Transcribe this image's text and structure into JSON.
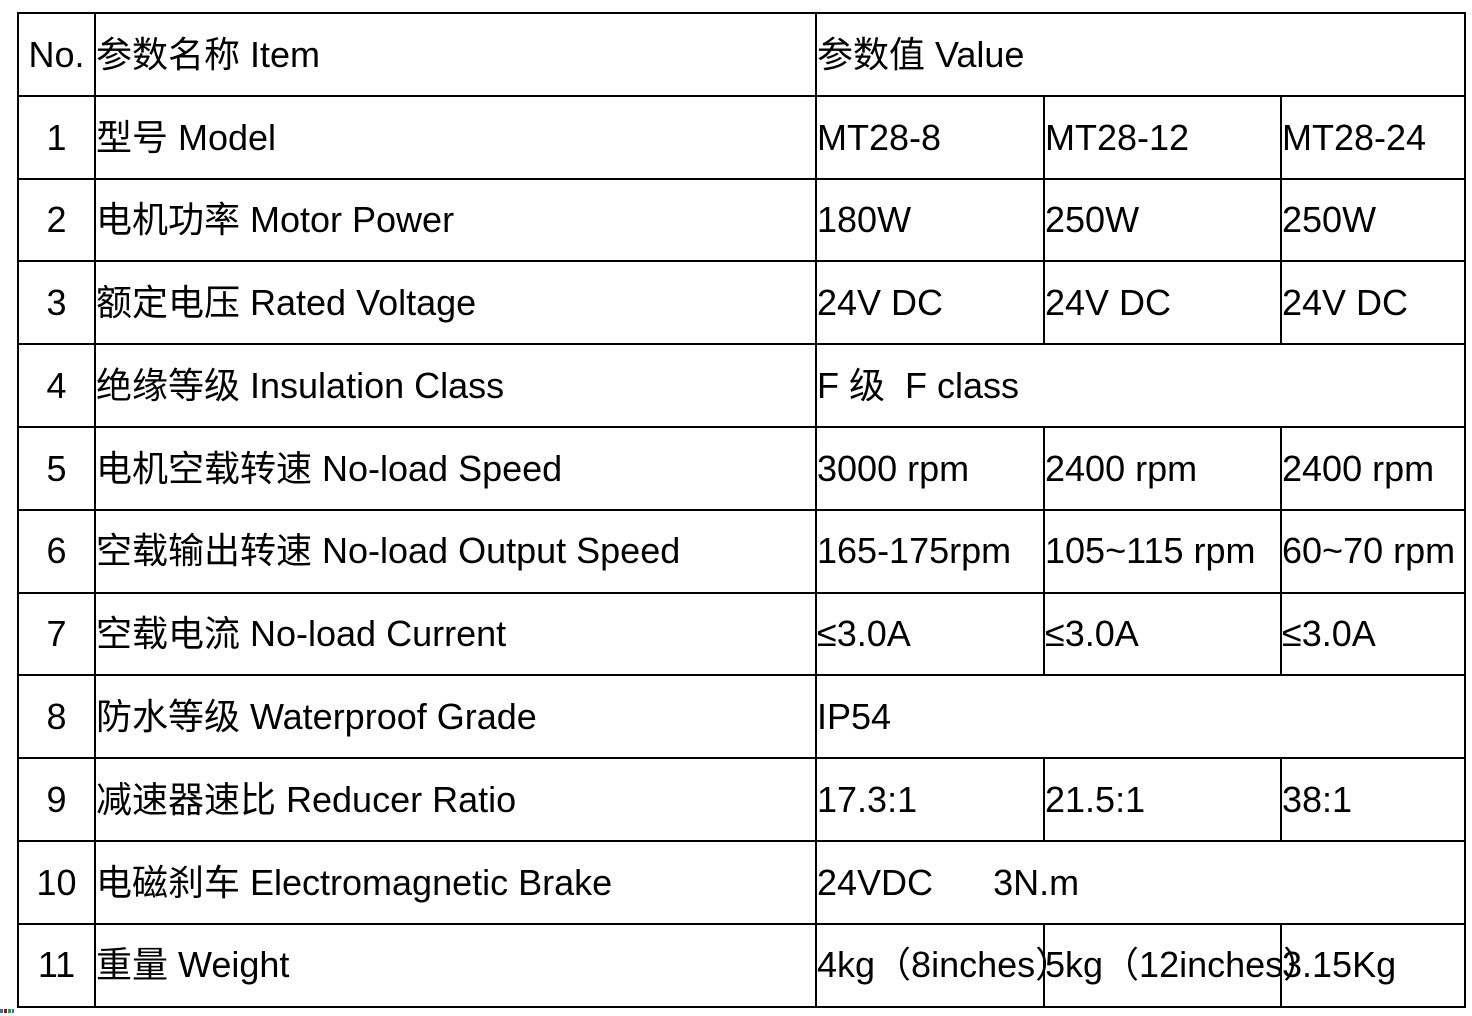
{
  "colors": {
    "background": "#ffffff",
    "border": "#000000",
    "text": "#000000"
  },
  "table": {
    "header": {
      "no": "No.",
      "item": "参数名称 Item",
      "value": "参数值 Value"
    },
    "rows": [
      {
        "no": "1",
        "item": "型号 Model",
        "merged": false,
        "values": [
          "MT28-8",
          "MT28-12",
          "MT28-24"
        ]
      },
      {
        "no": "2",
        "item": "电机功率 Motor Power",
        "merged": false,
        "values": [
          "180W",
          "250W",
          "250W"
        ]
      },
      {
        "no": "3",
        "item": "额定电压 Rated Voltage",
        "merged": false,
        "values": [
          "24V DC",
          "24V DC",
          "24V DC"
        ]
      },
      {
        "no": "4",
        "item": "绝缘等级 Insulation Class",
        "merged": true,
        "values": [
          "F 级  F class"
        ]
      },
      {
        "no": "5",
        "item": "电机空载转速 No-load Speed",
        "merged": false,
        "values": [
          "3000 rpm",
          "2400 rpm",
          "2400 rpm"
        ]
      },
      {
        "no": "6",
        "item": "空载输出转速 No-load Output Speed",
        "merged": false,
        "values": [
          "165-175rpm",
          "105~115 rpm",
          "60~70 rpm"
        ]
      },
      {
        "no": "7",
        "item": "空载电流 No-load Current",
        "merged": false,
        "values": [
          "≤3.0A",
          "≤3.0A",
          "≤3.0A"
        ]
      },
      {
        "no": "8",
        "item": "防水等级 Waterproof Grade",
        "merged": true,
        "values": [
          "IP54"
        ]
      },
      {
        "no": "9",
        "item": "减速器速比 Reducer Ratio",
        "merged": false,
        "values": [
          "17.3:1",
          "21.5:1",
          "38:1"
        ]
      },
      {
        "no": "10",
        "item": "电磁刹车 Electromagnetic Brake",
        "merged": true,
        "values": [
          "24VDC      3N.m"
        ]
      },
      {
        "no": "11",
        "item": "重量 Weight",
        "merged": false,
        "values": [
          "4kg（8inches）",
          "5kg（12inches）",
          "3.15Kg"
        ]
      }
    ]
  },
  "corner_artifact": {
    "colors": [
      "#2e74b5",
      "#c00000",
      "#00b050"
    ]
  }
}
